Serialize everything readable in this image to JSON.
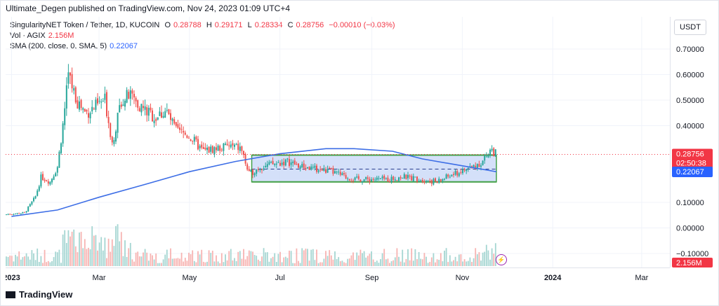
{
  "header": {
    "published": "Ultimate_Degen published on TradingView.com, Nov 24, 2023 01:09 UTC+4"
  },
  "legend": {
    "symbol": "SingularityNET Token / Tether, 1D, KUCOIN",
    "o_label": "O",
    "o": "0.28788",
    "h_label": "H",
    "h": "0.29171",
    "l_label": "L",
    "l": "0.28334",
    "c_label": "C",
    "c": "0.28756",
    "change": "−0.00010 (−0.03%)",
    "vol_label": "Vol · AGIX",
    "vol": "2.156M",
    "sma_label": "SMA (200, close, 0, SMA, 5)",
    "sma": "0.22067"
  },
  "currency_button": "USDT",
  "footer": {
    "brand": "TradingView"
  },
  "colors": {
    "up": "#26a69a",
    "down": "#ef5350",
    "sma": "#3d6ee6",
    "channel_fill": "#c9d8f7",
    "channel_line": "#43a047",
    "price_tag": "#f23645",
    "sma_tag": "#2962ff"
  },
  "chart_data": {
    "type": "candlestick",
    "timeframe": "1D",
    "y_ticks": [
      "0.70000",
      "0.60000",
      "0.50000",
      "0.40000",
      "0.10000",
      "0.00000",
      "−0.10000"
    ],
    "x_ticks": [
      "2023",
      "Mar",
      "May",
      "Jul",
      "Sep",
      "Nov",
      "2024",
      "Mar"
    ],
    "last_price": "0.28756",
    "countdown": "02:50:38",
    "sma_value": "0.22067",
    "volume_value": "2.156M",
    "close_series": [
      [
        "2023-01-01",
        0.055
      ],
      [
        "2023-01-10",
        0.06
      ],
      [
        "2023-01-17",
        0.12
      ],
      [
        "2023-01-21",
        0.2
      ],
      [
        "2023-01-27",
        0.18
      ],
      [
        "2023-02-01",
        0.24
      ],
      [
        "2023-02-05",
        0.42
      ],
      [
        "2023-02-08",
        0.6
      ],
      [
        "2023-02-14",
        0.5
      ],
      [
        "2023-02-20",
        0.45
      ],
      [
        "2023-02-28",
        0.48
      ],
      [
        "2023-03-05",
        0.5
      ],
      [
        "2023-03-10",
        0.33
      ],
      [
        "2023-03-16",
        0.5
      ],
      [
        "2023-03-22",
        0.52
      ],
      [
        "2023-03-30",
        0.47
      ],
      [
        "2023-04-08",
        0.43
      ],
      [
        "2023-04-15",
        0.46
      ],
      [
        "2023-04-22",
        0.38
      ],
      [
        "2023-05-01",
        0.36
      ],
      [
        "2023-05-10",
        0.3
      ],
      [
        "2023-05-18",
        0.31
      ],
      [
        "2023-05-28",
        0.32
      ],
      [
        "2023-06-05",
        0.31
      ],
      [
        "2023-06-10",
        0.21
      ],
      [
        "2023-06-18",
        0.24
      ],
      [
        "2023-06-28",
        0.25
      ],
      [
        "2023-07-06",
        0.26
      ],
      [
        "2023-07-15",
        0.24
      ],
      [
        "2023-07-25",
        0.23
      ],
      [
        "2023-08-05",
        0.22
      ],
      [
        "2023-08-14",
        0.2
      ],
      [
        "2023-08-20",
        0.19
      ],
      [
        "2023-09-01",
        0.19
      ],
      [
        "2023-09-12",
        0.19
      ],
      [
        "2023-09-22",
        0.2
      ],
      [
        "2023-10-05",
        0.19
      ],
      [
        "2023-10-15",
        0.18
      ],
      [
        "2023-10-22",
        0.2
      ],
      [
        "2023-10-31",
        0.22
      ],
      [
        "2023-11-08",
        0.24
      ],
      [
        "2023-11-15",
        0.26
      ],
      [
        "2023-11-20",
        0.31
      ],
      [
        "2023-11-24",
        0.288
      ]
    ],
    "sma_series": [
      [
        "2023-01-01",
        0.045
      ],
      [
        "2023-02-01",
        0.07
      ],
      [
        "2023-03-01",
        0.12
      ],
      [
        "2023-04-01",
        0.17
      ],
      [
        "2023-05-01",
        0.22
      ],
      [
        "2023-06-01",
        0.26
      ],
      [
        "2023-07-01",
        0.29
      ],
      [
        "2023-08-01",
        0.31
      ],
      [
        "2023-08-20",
        0.31
      ],
      [
        "2023-09-15",
        0.3
      ],
      [
        "2023-10-05",
        0.27
      ],
      [
        "2023-10-25",
        0.25
      ],
      [
        "2023-11-24",
        0.22
      ]
    ],
    "annotations": [
      {
        "type": "rectangle",
        "from": "2023-06-12",
        "to": "2023-11-24",
        "top": 0.285,
        "bottom": 0.18
      },
      {
        "type": "dashed-midline",
        "from": "2023-06-12",
        "to": "2023-11-24",
        "value": 0.23
      }
    ]
  }
}
